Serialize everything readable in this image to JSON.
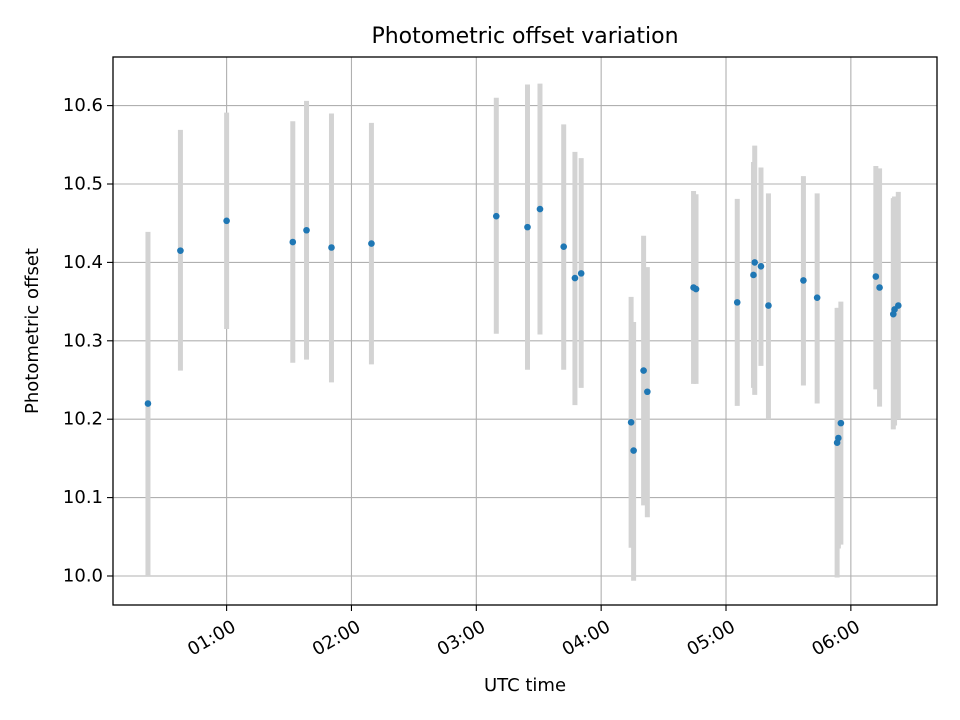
{
  "chart_data": {
    "type": "scatter",
    "title": "Photometric offset variation",
    "xlabel": "UTC time",
    "ylabel": "Photometric offset",
    "x_unit": "hours UTC",
    "xlim": [
      0.09,
      6.69
    ],
    "ylim": [
      9.963,
      10.662
    ],
    "xticks": [
      1,
      2,
      3,
      4,
      5,
      6
    ],
    "xtick_labels": [
      "01:00",
      "02:00",
      "03:00",
      "04:00",
      "05:00",
      "06:00"
    ],
    "yticks": [
      10.0,
      10.1,
      10.2,
      10.3,
      10.4,
      10.5,
      10.6
    ],
    "ytick_labels": [
      "10.0",
      "10.1",
      "10.2",
      "10.3",
      "10.4",
      "10.5",
      "10.6"
    ],
    "grid": true,
    "colors": {
      "point": "#1f77b4",
      "errorbar": "#d3d3d3",
      "grid": "#b0b0b0"
    },
    "points": [
      {
        "x": 0.37,
        "y": 10.22,
        "ylow": 10.0,
        "yhigh": 10.439
      },
      {
        "x": 0.63,
        "y": 10.415,
        "ylow": 10.262,
        "yhigh": 10.569
      },
      {
        "x": 1.0,
        "y": 10.453,
        "ylow": 10.315,
        "yhigh": 10.591
      },
      {
        "x": 1.53,
        "y": 10.426,
        "ylow": 10.272,
        "yhigh": 10.58
      },
      {
        "x": 1.64,
        "y": 10.441,
        "ylow": 10.276,
        "yhigh": 10.606
      },
      {
        "x": 1.84,
        "y": 10.419,
        "ylow": 10.247,
        "yhigh": 10.59
      },
      {
        "x": 2.16,
        "y": 10.424,
        "ylow": 10.27,
        "yhigh": 10.578
      },
      {
        "x": 3.16,
        "y": 10.459,
        "ylow": 10.309,
        "yhigh": 10.61
      },
      {
        "x": 3.41,
        "y": 10.445,
        "ylow": 10.263,
        "yhigh": 10.627
      },
      {
        "x": 3.51,
        "y": 10.468,
        "ylow": 10.308,
        "yhigh": 10.628
      },
      {
        "x": 3.7,
        "y": 10.42,
        "ylow": 10.263,
        "yhigh": 10.576
      },
      {
        "x": 3.79,
        "y": 10.38,
        "ylow": 10.218,
        "yhigh": 10.541
      },
      {
        "x": 3.84,
        "y": 10.386,
        "ylow": 10.24,
        "yhigh": 10.533
      },
      {
        "x": 4.24,
        "y": 10.196,
        "ylow": 10.036,
        "yhigh": 10.356
      },
      {
        "x": 4.26,
        "y": 10.16,
        "ylow": 9.994,
        "yhigh": 10.324
      },
      {
        "x": 4.34,
        "y": 10.262,
        "ylow": 10.09,
        "yhigh": 10.434
      },
      {
        "x": 4.37,
        "y": 10.235,
        "ylow": 10.075,
        "yhigh": 10.394
      },
      {
        "x": 4.74,
        "y": 10.368,
        "ylow": 10.245,
        "yhigh": 10.491
      },
      {
        "x": 4.76,
        "y": 10.366,
        "ylow": 10.245,
        "yhigh": 10.487
      },
      {
        "x": 5.09,
        "y": 10.349,
        "ylow": 10.217,
        "yhigh": 10.481
      },
      {
        "x": 5.22,
        "y": 10.384,
        "ylow": 10.24,
        "yhigh": 10.528
      },
      {
        "x": 5.23,
        "y": 10.4,
        "ylow": 10.231,
        "yhigh": 10.549
      },
      {
        "x": 5.28,
        "y": 10.395,
        "ylow": 10.268,
        "yhigh": 10.521
      },
      {
        "x": 5.34,
        "y": 10.345,
        "ylow": 10.2,
        "yhigh": 10.488
      },
      {
        "x": 5.62,
        "y": 10.377,
        "ylow": 10.243,
        "yhigh": 10.51
      },
      {
        "x": 5.73,
        "y": 10.355,
        "ylow": 10.22,
        "yhigh": 10.488
      },
      {
        "x": 5.89,
        "y": 10.17,
        "ylow": 9.998,
        "yhigh": 10.342
      },
      {
        "x": 5.9,
        "y": 10.176,
        "ylow": 10.035,
        "yhigh": 10.342
      },
      {
        "x": 5.92,
        "y": 10.195,
        "ylow": 10.04,
        "yhigh": 10.35
      },
      {
        "x": 6.2,
        "y": 10.382,
        "ylow": 10.238,
        "yhigh": 10.523
      },
      {
        "x": 6.23,
        "y": 10.368,
        "ylow": 10.216,
        "yhigh": 10.52
      },
      {
        "x": 6.34,
        "y": 10.334,
        "ylow": 10.187,
        "yhigh": 10.482
      },
      {
        "x": 6.35,
        "y": 10.34,
        "ylow": 10.192,
        "yhigh": 10.484
      },
      {
        "x": 6.38,
        "y": 10.345,
        "ylow": 10.2,
        "yhigh": 10.49
      }
    ]
  }
}
